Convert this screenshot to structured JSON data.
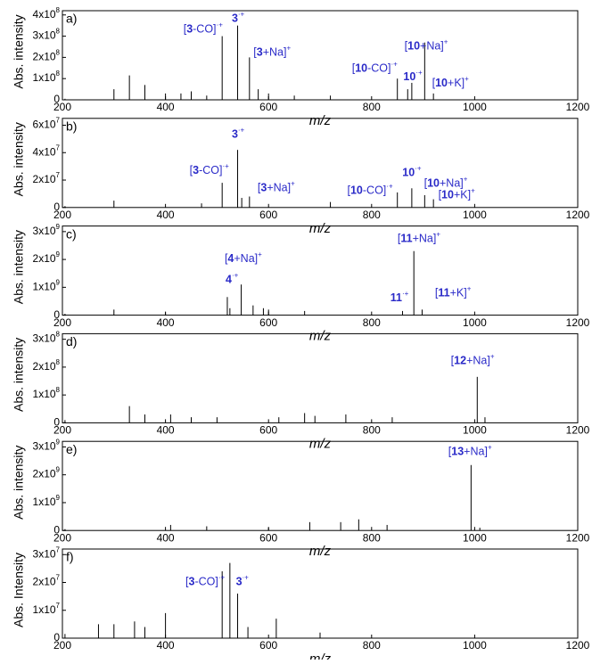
{
  "chart_data": [
    {
      "type": "stem",
      "panel": "a)",
      "ylabel": "Abs. intensity",
      "xlabel": "m/z",
      "color": "#000000",
      "annotation_color": "#2a2ac8",
      "xlim": [
        200,
        1200
      ],
      "xticks": [
        200,
        400,
        600,
        800,
        1000,
        1200
      ],
      "ylim": [
        0,
        420000000
      ],
      "yticks": [
        0,
        {
          "value": 100000000,
          "label": "1x10",
          "exp": "8"
        },
        {
          "value": 200000000,
          "label": "2x10",
          "exp": "8"
        },
        {
          "value": 300000000,
          "label": "3x10",
          "exp": "8"
        },
        {
          "value": 400000000,
          "label": "4x10",
          "exp": "8"
        }
      ],
      "x": [
        205,
        300,
        330,
        360,
        400,
        430,
        450,
        480,
        510,
        540,
        563,
        580,
        600,
        650,
        720,
        850,
        870,
        878,
        903,
        920
      ],
      "values": [
        5000000,
        50000000,
        115000000,
        70000000,
        30000000,
        30000000,
        40000000,
        20000000,
        300000000,
        350000000,
        200000000,
        50000000,
        30000000,
        20000000,
        20000000,
        100000000,
        50000000,
        80000000,
        270000000,
        30000000
      ],
      "annotations": [
        {
          "open": "[",
          "id": "3",
          "rest": "-CO]",
          "charge": "·+",
          "x": 473,
          "y": 330000000
        },
        {
          "id": "3",
          "charge": "·+",
          "x": 541,
          "y": 380000000
        },
        {
          "open": "[",
          "id": "3",
          "rest": "+Na]",
          "charge": "+",
          "x": 607,
          "y": 220000000
        },
        {
          "open": "[",
          "id": "10",
          "rest": "-CO]",
          "charge": "·+",
          "x": 806,
          "y": 145000000
        },
        {
          "id": "10",
          "charge": "·+",
          "x": 880,
          "y": 105000000
        },
        {
          "open": "[",
          "id": "10",
          "rest": "+Na]",
          "charge": "+",
          "x": 906,
          "y": 250000000
        },
        {
          "open": "[",
          "id": "10",
          "rest": "+K]",
          "charge": "+",
          "x": 953,
          "y": 75000000
        }
      ]
    },
    {
      "type": "stem",
      "panel": "b)",
      "ylabel": "Abs. intensity",
      "xlabel": "m/z",
      "color": "#000000",
      "annotation_color": "#2a2ac8",
      "xlim": [
        200,
        1200
      ],
      "xticks": [
        200,
        400,
        600,
        800,
        1000,
        1200
      ],
      "ylim": [
        0,
        65000000
      ],
      "yticks": [
        0,
        {
          "value": 20000000,
          "label": "2x10",
          "exp": "7"
        },
        {
          "value": 40000000,
          "label": "4x10",
          "exp": "7"
        },
        {
          "value": 60000000,
          "label": "6x10",
          "exp": "7"
        }
      ],
      "x": [
        205,
        300,
        470,
        510,
        540,
        548,
        563,
        720,
        850,
        878,
        903,
        920
      ],
      "values": [
        1000000,
        5000000,
        3000000,
        18000000,
        42000000,
        7000000,
        8000000,
        4000000,
        11000000,
        14000000,
        9000000,
        6000000
      ],
      "annotations": [
        {
          "id": "3",
          "charge": "·+",
          "x": 541,
          "y": 53000000
        },
        {
          "open": "[",
          "id": "3",
          "rest": "-CO]",
          "charge": "·+",
          "x": 485,
          "y": 26500000
        },
        {
          "open": "[",
          "id": "3",
          "rest": "+Na]",
          "charge": "+",
          "x": 615,
          "y": 14000000
        },
        {
          "open": "[",
          "id": "10",
          "rest": "-CO]",
          "charge": "·+",
          "x": 797,
          "y": 12000000
        },
        {
          "id": "10",
          "charge": "·+",
          "x": 878,
          "y": 25000000
        },
        {
          "open": "[",
          "id": "10",
          "rest": "+Na]",
          "charge": "+",
          "x": 944,
          "y": 17000000
        },
        {
          "open": "[",
          "id": "10",
          "rest": "+K]",
          "charge": "+",
          "x": 965,
          "y": 8600000
        }
      ]
    },
    {
      "type": "stem",
      "panel": "c)",
      "ylabel": "Abs. intensity",
      "xlabel": "m/z",
      "color": "#000000",
      "annotation_color": "#2a2ac8",
      "xlim": [
        200,
        1200
      ],
      "xticks": [
        200,
        400,
        600,
        800,
        1000,
        1200
      ],
      "ylim": [
        0,
        3200000000
      ],
      "yticks": [
        0,
        {
          "value": 1000000000,
          "label": "1x10",
          "exp": "9"
        },
        {
          "value": 2000000000,
          "label": "2x10",
          "exp": "9"
        },
        {
          "value": 3000000000,
          "label": "3x10",
          "exp": "9"
        }
      ],
      "x": [
        205,
        300,
        400,
        520,
        525,
        547,
        570,
        590,
        600,
        670,
        860,
        882,
        898
      ],
      "values": [
        50000000,
        200000000,
        100000000,
        650000000,
        250000000,
        1100000000,
        350000000,
        250000000,
        200000000,
        150000000,
        150000000,
        2300000000,
        200000000
      ],
      "annotations": [
        {
          "open": "[",
          "id": "11",
          "rest": "+Na]",
          "charge": "+",
          "x": 892,
          "y": 2730000000
        },
        {
          "open": "[",
          "id": "4",
          "rest": "+Na]",
          "charge": "+",
          "x": 551,
          "y": 2000000000
        },
        {
          "id": "4",
          "charge": "·+",
          "x": 529,
          "y": 1250000000
        },
        {
          "id": "11",
          "charge": "·+",
          "x": 854,
          "y": 600000000
        },
        {
          "open": "[",
          "id": "11",
          "rest": "+K]",
          "charge": "+",
          "x": 958,
          "y": 770000000
        }
      ]
    },
    {
      "type": "stem",
      "panel": "d)",
      "ylabel": "Abs. intensity",
      "xlabel": "m/z",
      "color": "#000000",
      "annotation_color": "#2a2ac8",
      "xlim": [
        200,
        1200
      ],
      "xticks": [
        200,
        400,
        600,
        800,
        1000,
        1200
      ],
      "ylim": [
        0,
        320000000
      ],
      "yticks": [
        0,
        {
          "value": 100000000,
          "label": "1x10",
          "exp": "8"
        },
        {
          "value": 200000000,
          "label": "2x10",
          "exp": "8"
        },
        {
          "value": 300000000,
          "label": "3x10",
          "exp": "8"
        }
      ],
      "x": [
        205,
        330,
        360,
        410,
        450,
        500,
        620,
        670,
        690,
        750,
        840,
        1005,
        1020
      ],
      "values": [
        10000000,
        60000000,
        30000000,
        30000000,
        20000000,
        20000000,
        20000000,
        35000000,
        25000000,
        30000000,
        20000000,
        165000000,
        20000000
      ],
      "annotations": [
        {
          "open": "[",
          "id": "12",
          "rest": "+Na]",
          "charge": "+",
          "x": 996,
          "y": 220000000
        }
      ]
    },
    {
      "type": "stem",
      "panel": "e)",
      "ylabel": "Abs. intensity",
      "xlabel": "m/z",
      "color": "#000000",
      "annotation_color": "#2a2ac8",
      "xlim": [
        200,
        1200
      ],
      "xticks": [
        200,
        400,
        600,
        800,
        1000,
        1200
      ],
      "ylim": [
        0,
        3200000000
      ],
      "yticks": [
        0,
        {
          "value": 1000000000,
          "label": "1x10",
          "exp": "9"
        },
        {
          "value": 2000000000,
          "label": "2x10",
          "exp": "9"
        },
        {
          "value": 3000000000,
          "label": "3x10",
          "exp": "9"
        }
      ],
      "x": [
        205,
        410,
        480,
        600,
        680,
        740,
        775,
        830,
        993,
        1010
      ],
      "values": [
        50000000,
        200000000,
        150000000,
        100000000,
        300000000,
        300000000,
        400000000,
        200000000,
        2350000000,
        100000000
      ],
      "annotations": [
        {
          "open": "[",
          "id": "13",
          "rest": "+Na]",
          "charge": "+",
          "x": 991,
          "y": 2800000000
        }
      ]
    },
    {
      "type": "stem",
      "panel": "f)",
      "ylabel": "Abs. Intensity",
      "xlabel": "m/z",
      "color": "#000000",
      "annotation_color": "#2a2ac8",
      "xlim": [
        200,
        1200
      ],
      "xticks": [
        200,
        400,
        600,
        800,
        1000,
        1200
      ],
      "ylim": [
        0,
        32000000
      ],
      "yticks": [
        0,
        {
          "value": 10000000,
          "label": "1x10",
          "exp": "7"
        },
        {
          "value": 20000000,
          "label": "2x10",
          "exp": "7"
        },
        {
          "value": 30000000,
          "label": "3x10",
          "exp": "7"
        }
      ],
      "x": [
        205,
        270,
        300,
        340,
        360,
        400,
        510,
        525,
        540,
        560,
        615,
        700
      ],
      "values": [
        1500000,
        5000000,
        5000000,
        6000000,
        4000000,
        9000000,
        24000000,
        27000000,
        16000000,
        4000000,
        7000000,
        2000000
      ],
      "annotations": [
        {
          "open": "[",
          "id": "3",
          "rest": "-CO]",
          "charge": "·+",
          "x": 477,
          "y": 20000000
        },
        {
          "id": "3",
          "charge": "·+",
          "x": 549,
          "y": 20000000
        }
      ]
    }
  ]
}
